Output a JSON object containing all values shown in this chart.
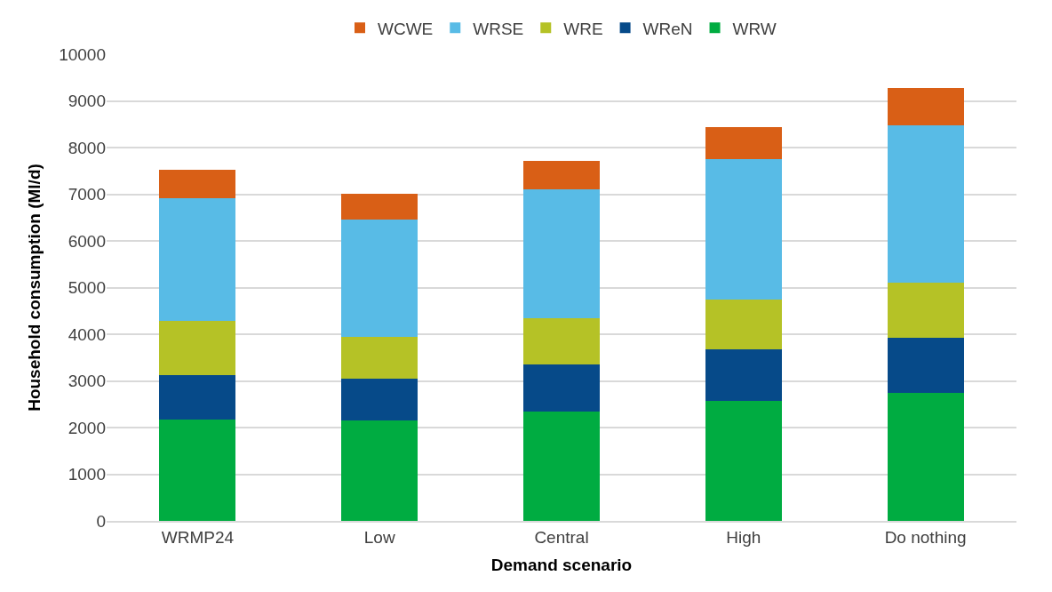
{
  "chart_data": {
    "type": "bar",
    "stacked": true,
    "xlabel": "Demand scenario",
    "ylabel": "Household consumption (Ml/d)",
    "categories": [
      "WRMP24",
      "Low",
      "Central",
      "High",
      "Do nothing"
    ],
    "series": [
      {
        "name": "WRW",
        "color": "#00ac41",
        "values": [
          2180,
          2150,
          2350,
          2580,
          2750
        ]
      },
      {
        "name": "WReN",
        "color": "#064a89",
        "values": [
          950,
          900,
          1010,
          1090,
          1170
        ]
      },
      {
        "name": "WRE",
        "color": "#b5c226",
        "values": [
          1160,
          900,
          980,
          1080,
          1180
        ]
      },
      {
        "name": "WRSE",
        "color": "#58bbe6",
        "values": [
          2630,
          2510,
          2770,
          3000,
          3380
        ]
      },
      {
        "name": "WCWE",
        "color": "#d95f16",
        "values": [
          610,
          550,
          610,
          680,
          790
        ]
      }
    ],
    "ylim": [
      0,
      10000
    ],
    "yticks": [
      0,
      1000,
      2000,
      3000,
      4000,
      5000,
      6000,
      7000,
      8000,
      9000,
      10000
    ],
    "grid": "y",
    "legend": "top"
  }
}
